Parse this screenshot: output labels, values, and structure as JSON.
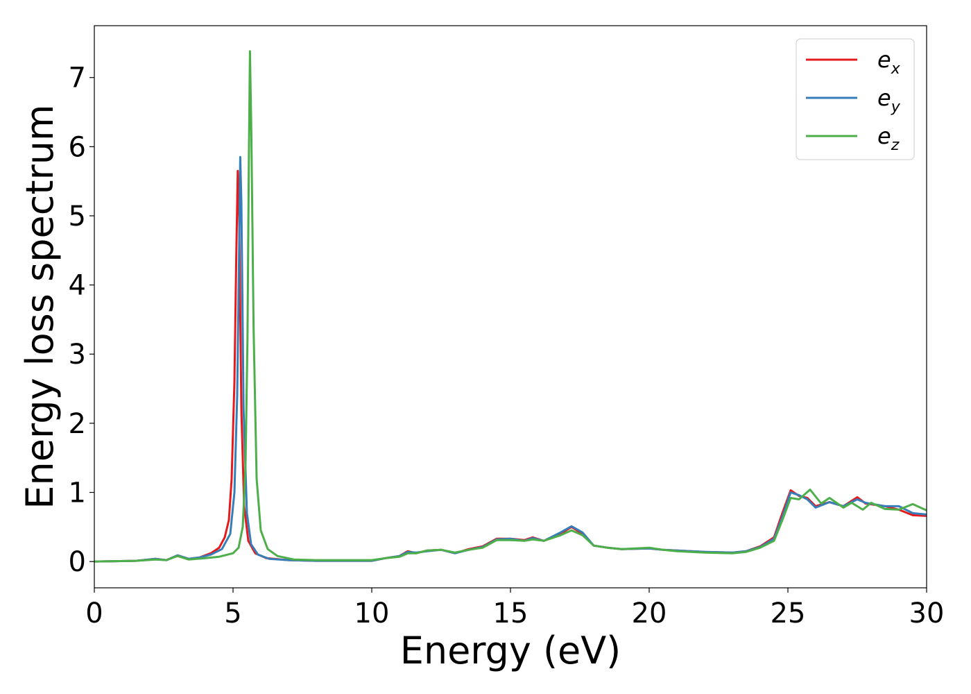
{
  "chart_data": {
    "type": "line",
    "xlabel": "Energy (eV)",
    "ylabel": "Energy loss spectrum",
    "xlim": [
      0,
      30
    ],
    "ylim": [
      -0.38,
      7.75
    ],
    "x_ticks": [
      "0",
      "5",
      "10",
      "15",
      "20",
      "25",
      "30"
    ],
    "y_ticks": [
      "0",
      "1",
      "2",
      "3",
      "4",
      "5",
      "6",
      "7"
    ],
    "grid": false,
    "legend_position": "top-right",
    "series": [
      {
        "name": "e_x",
        "name_base": "e",
        "name_sub": "x",
        "color": "#e41a1c",
        "points": [
          [
            0,
            0
          ],
          [
            1.5,
            0.01
          ],
          [
            2.2,
            0.04
          ],
          [
            2.6,
            0.02
          ],
          [
            3.0,
            0.09
          ],
          [
            3.4,
            0.04
          ],
          [
            3.8,
            0.06
          ],
          [
            4.2,
            0.12
          ],
          [
            4.5,
            0.2
          ],
          [
            4.7,
            0.35
          ],
          [
            4.85,
            0.6
          ],
          [
            4.95,
            1.2
          ],
          [
            5.05,
            2.6
          ],
          [
            5.12,
            4.5
          ],
          [
            5.17,
            5.65
          ],
          [
            5.22,
            5.0
          ],
          [
            5.3,
            2.2
          ],
          [
            5.4,
            0.8
          ],
          [
            5.55,
            0.3
          ],
          [
            5.8,
            0.12
          ],
          [
            6.2,
            0.05
          ],
          [
            7,
            0.02
          ],
          [
            8,
            0.01
          ],
          [
            10,
            0.01
          ],
          [
            10.5,
            0.05
          ],
          [
            11,
            0.08
          ],
          [
            11.3,
            0.15
          ],
          [
            11.6,
            0.12
          ],
          [
            12,
            0.16
          ],
          [
            12.5,
            0.17
          ],
          [
            13,
            0.12
          ],
          [
            13.5,
            0.18
          ],
          [
            14,
            0.22
          ],
          [
            14.5,
            0.33
          ],
          [
            15,
            0.33
          ],
          [
            15.5,
            0.31
          ],
          [
            15.8,
            0.35
          ],
          [
            16.2,
            0.3
          ],
          [
            16.8,
            0.4
          ],
          [
            17.2,
            0.5
          ],
          [
            17.6,
            0.4
          ],
          [
            18,
            0.23
          ],
          [
            18.5,
            0.2
          ],
          [
            19,
            0.18
          ],
          [
            20,
            0.19
          ],
          [
            20.5,
            0.17
          ],
          [
            21,
            0.16
          ],
          [
            22,
            0.14
          ],
          [
            23,
            0.13
          ],
          [
            23.5,
            0.15
          ],
          [
            24,
            0.22
          ],
          [
            24.5,
            0.35
          ],
          [
            24.8,
            0.7
          ],
          [
            25.1,
            1.03
          ],
          [
            25.4,
            0.95
          ],
          [
            25.7,
            0.92
          ],
          [
            26,
            0.8
          ],
          [
            26.5,
            0.86
          ],
          [
            27,
            0.8
          ],
          [
            27.5,
            0.93
          ],
          [
            27.8,
            0.84
          ],
          [
            28.5,
            0.8
          ],
          [
            29,
            0.75
          ],
          [
            29.5,
            0.67
          ],
          [
            30,
            0.66
          ]
        ]
      },
      {
        "name": "e_y",
        "name_base": "e",
        "name_sub": "y",
        "color": "#377eb8",
        "points": [
          [
            0,
            0
          ],
          [
            1.5,
            0.01
          ],
          [
            2.2,
            0.04
          ],
          [
            2.6,
            0.02
          ],
          [
            3.0,
            0.09
          ],
          [
            3.4,
            0.04
          ],
          [
            3.8,
            0.06
          ],
          [
            4.2,
            0.1
          ],
          [
            4.6,
            0.18
          ],
          [
            4.9,
            0.4
          ],
          [
            5.05,
            1.0
          ],
          [
            5.15,
            2.4
          ],
          [
            5.22,
            4.5
          ],
          [
            5.26,
            5.85
          ],
          [
            5.3,
            5.2
          ],
          [
            5.38,
            2.2
          ],
          [
            5.5,
            0.7
          ],
          [
            5.65,
            0.25
          ],
          [
            5.9,
            0.1
          ],
          [
            6.3,
            0.04
          ],
          [
            7,
            0.02
          ],
          [
            8,
            0.01
          ],
          [
            10,
            0.01
          ],
          [
            10.5,
            0.05
          ],
          [
            11,
            0.08
          ],
          [
            11.3,
            0.14
          ],
          [
            11.6,
            0.13
          ],
          [
            12,
            0.15
          ],
          [
            12.5,
            0.17
          ],
          [
            13,
            0.12
          ],
          [
            13.5,
            0.17
          ],
          [
            14,
            0.21
          ],
          [
            14.5,
            0.32
          ],
          [
            15,
            0.33
          ],
          [
            15.5,
            0.3
          ],
          [
            15.8,
            0.34
          ],
          [
            16.2,
            0.3
          ],
          [
            16.8,
            0.42
          ],
          [
            17.2,
            0.51
          ],
          [
            17.6,
            0.42
          ],
          [
            18,
            0.23
          ],
          [
            18.5,
            0.2
          ],
          [
            19,
            0.18
          ],
          [
            20,
            0.19
          ],
          [
            20.5,
            0.17
          ],
          [
            21,
            0.16
          ],
          [
            22,
            0.14
          ],
          [
            23,
            0.13
          ],
          [
            23.5,
            0.15
          ],
          [
            24,
            0.21
          ],
          [
            24.5,
            0.33
          ],
          [
            24.8,
            0.65
          ],
          [
            25.1,
            1.0
          ],
          [
            25.4,
            0.96
          ],
          [
            25.7,
            0.9
          ],
          [
            26,
            0.78
          ],
          [
            26.5,
            0.86
          ],
          [
            27,
            0.8
          ],
          [
            27.5,
            0.9
          ],
          [
            27.8,
            0.85
          ],
          [
            28.5,
            0.8
          ],
          [
            29,
            0.8
          ],
          [
            29.5,
            0.7
          ],
          [
            30,
            0.68
          ]
        ]
      },
      {
        "name": "e_z",
        "name_base": "e",
        "name_sub": "z",
        "color": "#4daf4a",
        "points": [
          [
            0,
            0
          ],
          [
            1.5,
            0.01
          ],
          [
            2.2,
            0.03
          ],
          [
            2.6,
            0.02
          ],
          [
            3.0,
            0.08
          ],
          [
            3.4,
            0.03
          ],
          [
            4,
            0.05
          ],
          [
            4.5,
            0.07
          ],
          [
            5,
            0.12
          ],
          [
            5.2,
            0.2
          ],
          [
            5.35,
            0.5
          ],
          [
            5.45,
            1.4
          ],
          [
            5.52,
            3.2
          ],
          [
            5.57,
            5.8
          ],
          [
            5.61,
            7.38
          ],
          [
            5.66,
            6.2
          ],
          [
            5.74,
            3.4
          ],
          [
            5.85,
            1.2
          ],
          [
            6,
            0.45
          ],
          [
            6.25,
            0.18
          ],
          [
            6.6,
            0.08
          ],
          [
            7.2,
            0.03
          ],
          [
            8,
            0.02
          ],
          [
            10,
            0.02
          ],
          [
            10.5,
            0.05
          ],
          [
            11,
            0.07
          ],
          [
            11.3,
            0.12
          ],
          [
            11.6,
            0.12
          ],
          [
            12,
            0.16
          ],
          [
            12.5,
            0.17
          ],
          [
            13,
            0.13
          ],
          [
            13.5,
            0.17
          ],
          [
            14,
            0.2
          ],
          [
            14.5,
            0.31
          ],
          [
            15,
            0.31
          ],
          [
            15.5,
            0.3
          ],
          [
            15.8,
            0.32
          ],
          [
            16.2,
            0.3
          ],
          [
            16.8,
            0.38
          ],
          [
            17.2,
            0.45
          ],
          [
            17.6,
            0.38
          ],
          [
            18,
            0.23
          ],
          [
            18.5,
            0.2
          ],
          [
            19,
            0.18
          ],
          [
            20,
            0.2
          ],
          [
            20.5,
            0.17
          ],
          [
            21,
            0.15
          ],
          [
            22,
            0.13
          ],
          [
            23,
            0.12
          ],
          [
            23.5,
            0.14
          ],
          [
            24,
            0.2
          ],
          [
            24.5,
            0.3
          ],
          [
            24.8,
            0.6
          ],
          [
            25.1,
            0.92
          ],
          [
            25.4,
            0.9
          ],
          [
            25.8,
            1.04
          ],
          [
            26.2,
            0.84
          ],
          [
            26.5,
            0.92
          ],
          [
            27,
            0.78
          ],
          [
            27.3,
            0.85
          ],
          [
            27.7,
            0.75
          ],
          [
            28,
            0.85
          ],
          [
            28.5,
            0.76
          ],
          [
            29,
            0.75
          ],
          [
            29.5,
            0.83
          ],
          [
            30,
            0.74
          ]
        ]
      }
    ]
  }
}
